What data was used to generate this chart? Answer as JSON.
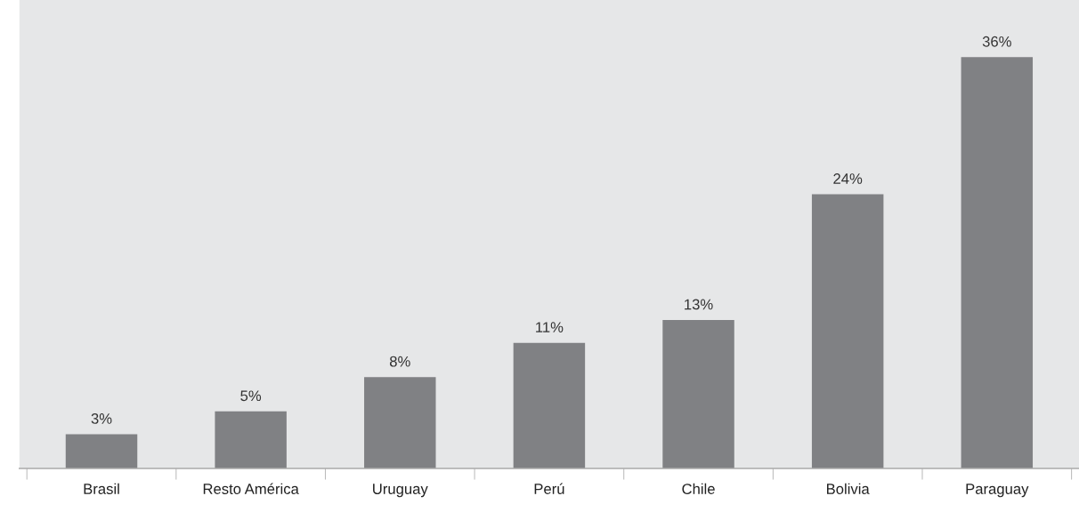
{
  "chart_data": {
    "type": "bar",
    "categories": [
      "Brasil",
      "Resto América",
      "Uruguay",
      "Perú",
      "Chile",
      "Bolivia",
      "Paraguay"
    ],
    "values": [
      3,
      5,
      8,
      11,
      13,
      24,
      36
    ],
    "value_labels": [
      "3%",
      "5%",
      "8%",
      "11%",
      "13%",
      "24%",
      "36%"
    ],
    "color": "#808184",
    "ylim": [
      0,
      41
    ],
    "tick_labels": "x",
    "grid": false,
    "legend": false
  }
}
